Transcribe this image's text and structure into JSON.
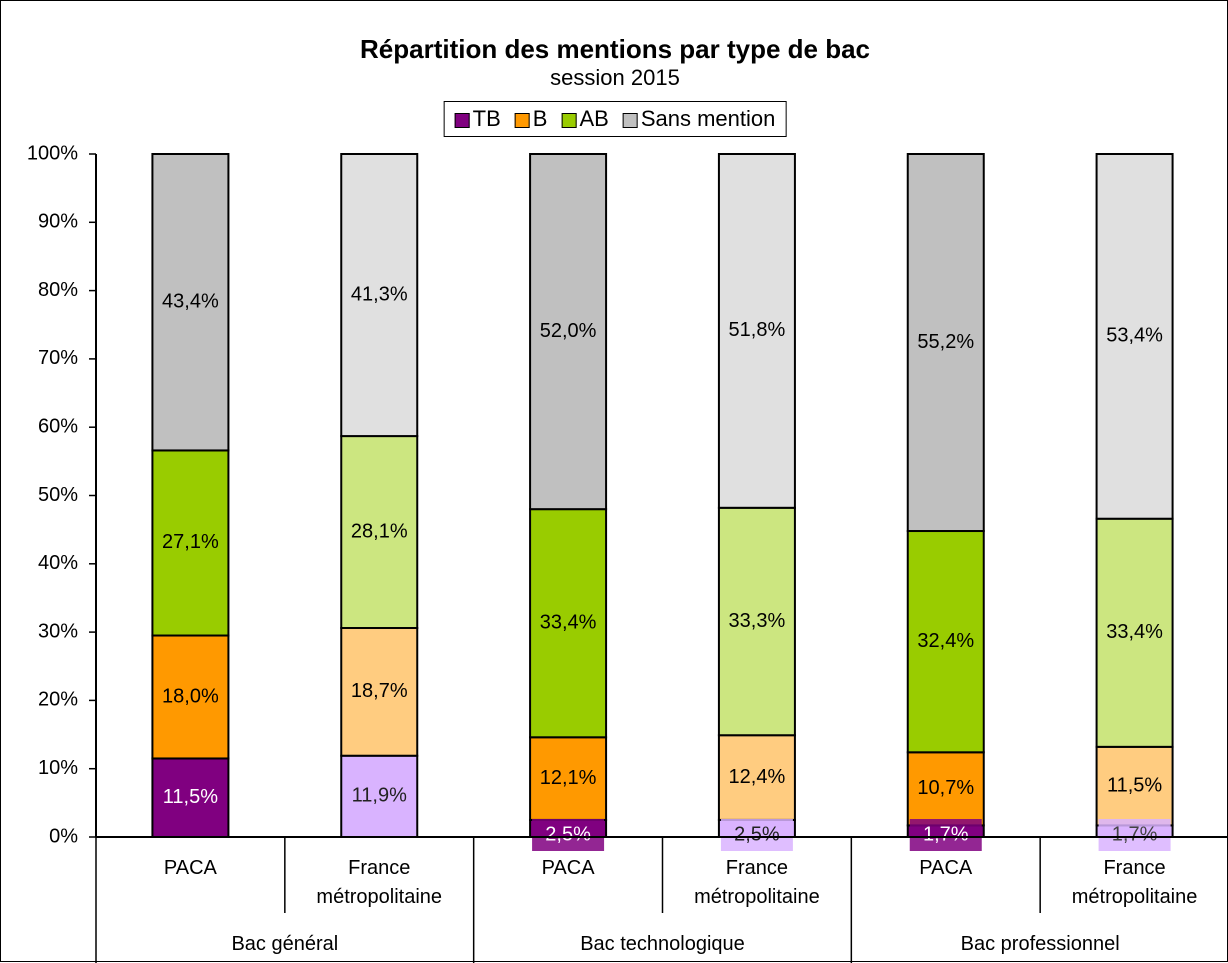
{
  "chart_data": {
    "type": "stacked_bar",
    "title": "Répartition des mentions par type de bac",
    "subtitle": "session 2015",
    "categories": [
      "PACA",
      "France métropolitaine",
      "PACA",
      "France métropolitaine",
      "PACA",
      "France métropolitaine"
    ],
    "groups": [
      "Bac général",
      "Bac technologique",
      "Bac professionnel"
    ],
    "legend": "top",
    "ylim": [
      0,
      100
    ],
    "yticks": [
      {
        "value": 0,
        "label": "0%"
      },
      {
        "value": 10,
        "label": "10%"
      },
      {
        "value": 20,
        "label": "20%"
      },
      {
        "value": 30,
        "label": "30%"
      },
      {
        "value": 40,
        "label": "40%"
      },
      {
        "value": 50,
        "label": "50%"
      },
      {
        "value": 60,
        "label": "60%"
      },
      {
        "value": 70,
        "label": "70%"
      },
      {
        "value": 80,
        "label": "80%"
      },
      {
        "value": 90,
        "label": "90%"
      },
      {
        "value": 100,
        "label": "100%"
      }
    ],
    "series": [
      {
        "name": "TB",
        "color": "#800080",
        "colors": [
          "#800080",
          "#d9b3ff",
          "#800080",
          "#d9b3ff",
          "#800080",
          "#d9b3ff"
        ],
        "label_colors": [
          "#ffffff",
          "#222222",
          "#ffffff",
          "#222222",
          "#ffffff",
          "#444444"
        ],
        "values": [
          11.5,
          11.9,
          2.5,
          2.5,
          1.7,
          1.7
        ],
        "value_labels": [
          "11,5%",
          "11,9%",
          "2,5%",
          "2,5%",
          "1,7%",
          "1,7%"
        ]
      },
      {
        "name": "B",
        "color": "#ff9900",
        "colors": [
          "#ff9900",
          "#ffcc80",
          "#ff9900",
          "#ffcc80",
          "#ff9900",
          "#ffcc80"
        ],
        "values": [
          18.0,
          18.7,
          12.1,
          12.4,
          10.7,
          11.5
        ],
        "value_labels": [
          "18,0%",
          "18,7%",
          "12,1%",
          "12,4%",
          "10,7%",
          "11,5%"
        ]
      },
      {
        "name": "AB",
        "color": "#99cc00",
        "colors": [
          "#99cc00",
          "#cce680",
          "#99cc00",
          "#cce680",
          "#99cc00",
          "#cce680"
        ],
        "values": [
          27.1,
          28.1,
          33.4,
          33.3,
          32.4,
          33.4
        ],
        "value_labels": [
          "27,1%",
          "28,1%",
          "33,4%",
          "33,3%",
          "32,4%",
          "33,4%"
        ]
      },
      {
        "name": "Sans mention",
        "color": "#c0c0c0",
        "colors": [
          "#c0c0c0",
          "#e0e0e0",
          "#c0c0c0",
          "#e0e0e0",
          "#c0c0c0",
          "#e0e0e0"
        ],
        "values": [
          43.4,
          41.3,
          52.0,
          51.8,
          55.2,
          53.4
        ],
        "value_labels": [
          "43,4%",
          "41,3%",
          "52,0%",
          "51,8%",
          "55,2%",
          "53,4%"
        ]
      }
    ]
  }
}
